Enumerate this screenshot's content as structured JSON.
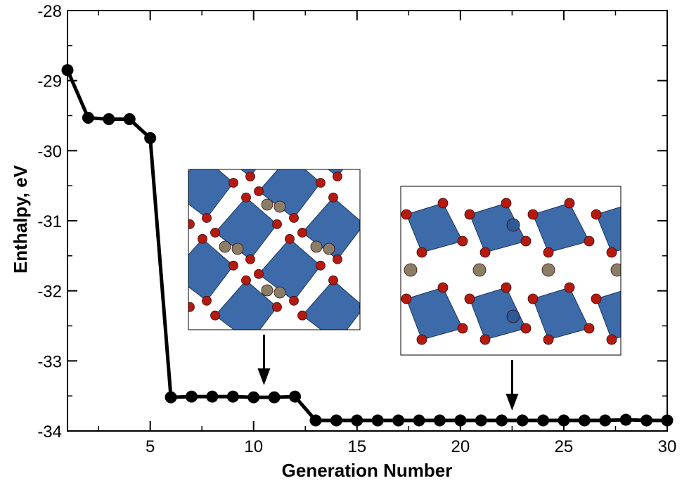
{
  "chart_data": {
    "type": "line",
    "title": "",
    "xlabel": "Generation Number",
    "ylabel": "Enthalpy, eV",
    "xlim": [
      1,
      30
    ],
    "ylim": [
      -34,
      -28
    ],
    "xticks": [
      5,
      10,
      15,
      20,
      25,
      30
    ],
    "yticks": [
      -28,
      -29,
      -30,
      -31,
      -32,
      -33,
      -34
    ],
    "grid": false,
    "legend": "none",
    "series": [
      {
        "color": "#000000",
        "marker": "circle",
        "x": [
          1,
          2,
          3,
          4,
          5,
          6,
          7,
          8,
          9,
          10,
          11,
          12,
          13,
          14,
          15,
          16,
          17,
          18,
          19,
          20,
          21,
          22,
          23,
          24,
          25,
          26,
          27,
          28,
          29,
          30
        ],
        "y": [
          -28.85,
          -29.53,
          -29.55,
          -29.55,
          -29.82,
          -33.52,
          -33.51,
          -33.51,
          -33.51,
          -33.52,
          -33.52,
          -33.51,
          -33.85,
          -33.85,
          -33.85,
          -33.85,
          -33.85,
          -33.85,
          -33.85,
          -33.85,
          -33.85,
          -33.85,
          -33.85,
          -33.85,
          -33.85,
          -33.85,
          -33.85,
          -33.84,
          -33.85,
          -33.85
        ]
      }
    ],
    "insets": [
      {
        "depicts": "crystal-structure-rotated-octahedra",
        "points_to_generation": 10.5
      },
      {
        "depicts": "crystal-structure-layered-octahedra",
        "points_to_generation": 22.5
      }
    ],
    "colors": {
      "polyhedra": "#3d6aa8",
      "oxygen": "#b51a10",
      "cation": "#8a7f66"
    }
  }
}
